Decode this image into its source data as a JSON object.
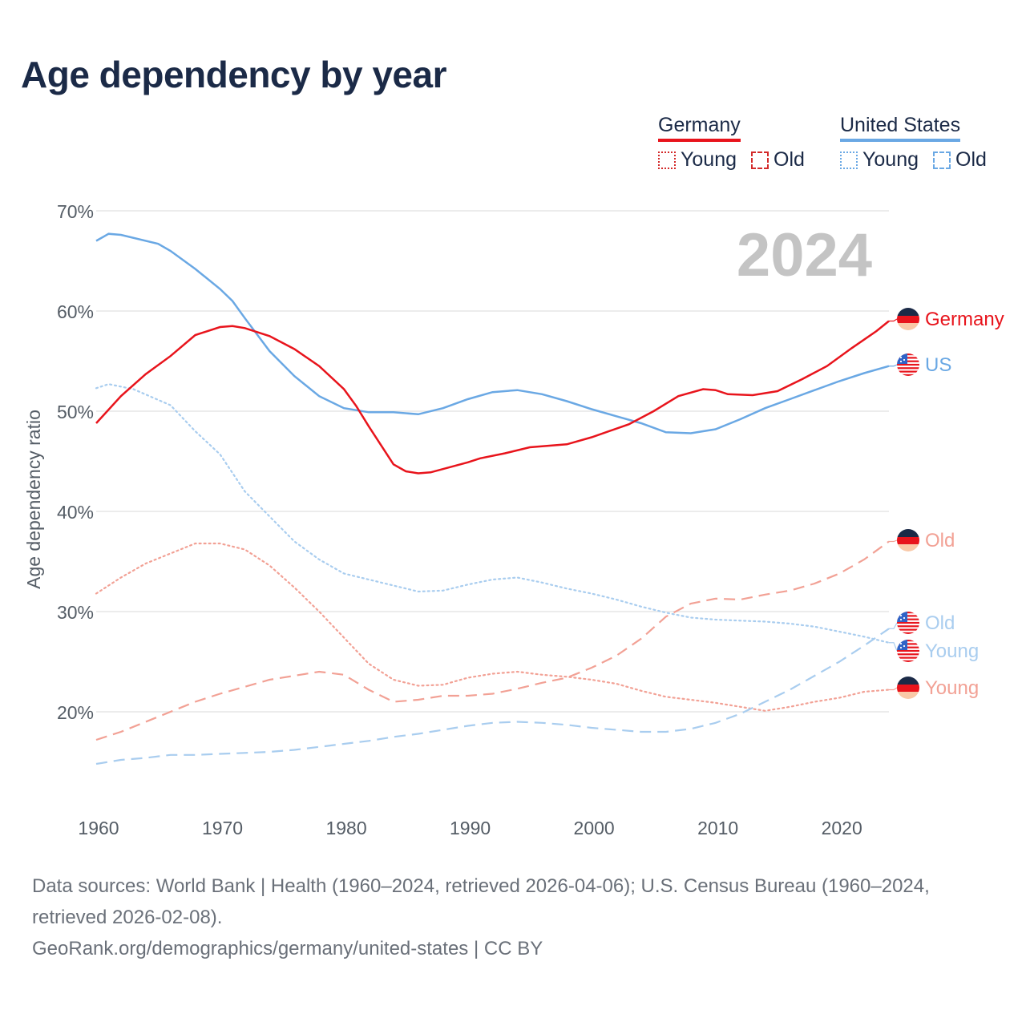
{
  "title": "Age dependency by year",
  "colors": {
    "germany_total": "#e8141c",
    "germany_sub": "#f2a195",
    "us_total": "#6aa8e4",
    "us_sub": "#a9cdef",
    "text_dark": "#1b2a47",
    "grid": "#e6e6e6"
  },
  "legend": {
    "germany": {
      "name": "Germany",
      "young": "Young",
      "old": "Old"
    },
    "us": {
      "name": "United States",
      "young": "Young",
      "old": "Old"
    }
  },
  "chart_data": {
    "type": "line",
    "title": "Age dependency by year",
    "xlabel": "",
    "ylabel": "Age dependency ratio",
    "xlim": [
      1960,
      2024
    ],
    "ylim": [
      0.1,
      0.7
    ],
    "x_ticks": [
      1960,
      1970,
      1980,
      1990,
      2000,
      2010,
      2020
    ],
    "y_ticks": [
      {
        "value": 0.2,
        "label": "20%"
      },
      {
        "value": 0.3,
        "label": "30%"
      },
      {
        "value": 0.4,
        "label": "40%"
      },
      {
        "value": 0.5,
        "label": "50%"
      },
      {
        "value": 0.6,
        "label": "60%"
      },
      {
        "value": 0.7,
        "label": "70%"
      }
    ],
    "current_year": "2024",
    "series": [
      {
        "key": "de_total",
        "name": "Germany",
        "end_label": "Germany",
        "country": "Germany",
        "dash": "solid",
        "color": "#e8141c",
        "points": [
          [
            1960,
            0.488
          ],
          [
            1962,
            0.515
          ],
          [
            1964,
            0.537
          ],
          [
            1966,
            0.555
          ],
          [
            1968,
            0.576
          ],
          [
            1970,
            0.584
          ],
          [
            1971,
            0.585
          ],
          [
            1972,
            0.583
          ],
          [
            1974,
            0.575
          ],
          [
            1976,
            0.562
          ],
          [
            1978,
            0.545
          ],
          [
            1980,
            0.522
          ],
          [
            1981,
            0.505
          ],
          [
            1982,
            0.485
          ],
          [
            1984,
            0.447
          ],
          [
            1985,
            0.44
          ],
          [
            1986,
            0.438
          ],
          [
            1987,
            0.439
          ],
          [
            1990,
            0.449
          ],
          [
            1991,
            0.453
          ],
          [
            1993,
            0.458
          ],
          [
            1995,
            0.464
          ],
          [
            1998,
            0.467
          ],
          [
            2000,
            0.474
          ],
          [
            2003,
            0.487
          ],
          [
            2005,
            0.5
          ],
          [
            2007,
            0.515
          ],
          [
            2009,
            0.522
          ],
          [
            2010,
            0.521
          ],
          [
            2011,
            0.517
          ],
          [
            2013,
            0.516
          ],
          [
            2015,
            0.52
          ],
          [
            2017,
            0.532
          ],
          [
            2019,
            0.545
          ],
          [
            2021,
            0.563
          ],
          [
            2023,
            0.58
          ],
          [
            2024,
            0.59
          ]
        ]
      },
      {
        "key": "us_total",
        "name": "United States",
        "end_label": "US",
        "country": "US",
        "dash": "solid",
        "color": "#6aa8e4",
        "points": [
          [
            1960,
            0.67
          ],
          [
            1961,
            0.677
          ],
          [
            1962,
            0.676
          ],
          [
            1965,
            0.667
          ],
          [
            1966,
            0.66
          ],
          [
            1968,
            0.642
          ],
          [
            1970,
            0.622
          ],
          [
            1971,
            0.61
          ],
          [
            1972,
            0.593
          ],
          [
            1974,
            0.56
          ],
          [
            1976,
            0.535
          ],
          [
            1978,
            0.515
          ],
          [
            1980,
            0.503
          ],
          [
            1982,
            0.499
          ],
          [
            1984,
            0.499
          ],
          [
            1986,
            0.497
          ],
          [
            1988,
            0.503
          ],
          [
            1990,
            0.512
          ],
          [
            1992,
            0.519
          ],
          [
            1994,
            0.521
          ],
          [
            1996,
            0.517
          ],
          [
            1998,
            0.51
          ],
          [
            2000,
            0.502
          ],
          [
            2002,
            0.495
          ],
          [
            2004,
            0.488
          ],
          [
            2006,
            0.479
          ],
          [
            2008,
            0.478
          ],
          [
            2010,
            0.482
          ],
          [
            2012,
            0.492
          ],
          [
            2014,
            0.503
          ],
          [
            2016,
            0.512
          ],
          [
            2018,
            0.521
          ],
          [
            2020,
            0.53
          ],
          [
            2022,
            0.538
          ],
          [
            2024,
            0.545
          ]
        ]
      },
      {
        "key": "de_old",
        "name": "Germany Old",
        "end_label": "Old",
        "country": "Germany",
        "dash": "dashed",
        "color": "#f2a195",
        "points": [
          [
            1960,
            0.172
          ],
          [
            1962,
            0.18
          ],
          [
            1964,
            0.19
          ],
          [
            1966,
            0.2
          ],
          [
            1968,
            0.21
          ],
          [
            1970,
            0.218
          ],
          [
            1972,
            0.225
          ],
          [
            1974,
            0.232
          ],
          [
            1976,
            0.236
          ],
          [
            1978,
            0.24
          ],
          [
            1980,
            0.237
          ],
          [
            1982,
            0.222
          ],
          [
            1984,
            0.21
          ],
          [
            1986,
            0.212
          ],
          [
            1988,
            0.216
          ],
          [
            1990,
            0.216
          ],
          [
            1992,
            0.218
          ],
          [
            1994,
            0.223
          ],
          [
            1996,
            0.229
          ],
          [
            1998,
            0.234
          ],
          [
            2000,
            0.244
          ],
          [
            2002,
            0.256
          ],
          [
            2004,
            0.273
          ],
          [
            2006,
            0.295
          ],
          [
            2008,
            0.308
          ],
          [
            2010,
            0.313
          ],
          [
            2012,
            0.312
          ],
          [
            2014,
            0.317
          ],
          [
            2016,
            0.321
          ],
          [
            2018,
            0.328
          ],
          [
            2020,
            0.338
          ],
          [
            2022,
            0.352
          ],
          [
            2024,
            0.37
          ]
        ]
      },
      {
        "key": "de_young",
        "name": "Germany Young",
        "end_label": "Young",
        "country": "Germany",
        "dash": "dotted",
        "color": "#f2a195",
        "points": [
          [
            1960,
            0.318
          ],
          [
            1962,
            0.334
          ],
          [
            1964,
            0.348
          ],
          [
            1966,
            0.358
          ],
          [
            1968,
            0.368
          ],
          [
            1970,
            0.368
          ],
          [
            1972,
            0.362
          ],
          [
            1974,
            0.346
          ],
          [
            1976,
            0.324
          ],
          [
            1978,
            0.3
          ],
          [
            1980,
            0.274
          ],
          [
            1982,
            0.248
          ],
          [
            1984,
            0.232
          ],
          [
            1986,
            0.226
          ],
          [
            1988,
            0.227
          ],
          [
            1990,
            0.234
          ],
          [
            1992,
            0.238
          ],
          [
            1994,
            0.24
          ],
          [
            1996,
            0.237
          ],
          [
            1998,
            0.235
          ],
          [
            2000,
            0.232
          ],
          [
            2002,
            0.228
          ],
          [
            2004,
            0.221
          ],
          [
            2006,
            0.215
          ],
          [
            2008,
            0.212
          ],
          [
            2010,
            0.209
          ],
          [
            2012,
            0.205
          ],
          [
            2014,
            0.201
          ],
          [
            2016,
            0.205
          ],
          [
            2018,
            0.21
          ],
          [
            2020,
            0.214
          ],
          [
            2022,
            0.22
          ],
          [
            2024,
            0.222
          ]
        ]
      },
      {
        "key": "us_young",
        "name": "United States Young",
        "end_label": "Young",
        "country": "US",
        "dash": "dotted",
        "color": "#a9cdef",
        "points": [
          [
            1960,
            0.523
          ],
          [
            1961,
            0.527
          ],
          [
            1963,
            0.522
          ],
          [
            1966,
            0.506
          ],
          [
            1968,
            0.48
          ],
          [
            1970,
            0.457
          ],
          [
            1972,
            0.42
          ],
          [
            1974,
            0.395
          ],
          [
            1976,
            0.37
          ],
          [
            1978,
            0.352
          ],
          [
            1980,
            0.338
          ],
          [
            1982,
            0.332
          ],
          [
            1984,
            0.326
          ],
          [
            1986,
            0.32
          ],
          [
            1988,
            0.321
          ],
          [
            1990,
            0.327
          ],
          [
            1992,
            0.332
          ],
          [
            1994,
            0.334
          ],
          [
            1996,
            0.329
          ],
          [
            1998,
            0.323
          ],
          [
            2000,
            0.318
          ],
          [
            2002,
            0.312
          ],
          [
            2004,
            0.305
          ],
          [
            2006,
            0.299
          ],
          [
            2008,
            0.294
          ],
          [
            2010,
            0.292
          ],
          [
            2012,
            0.291
          ],
          [
            2014,
            0.29
          ],
          [
            2016,
            0.288
          ],
          [
            2018,
            0.285
          ],
          [
            2020,
            0.28
          ],
          [
            2022,
            0.275
          ],
          [
            2024,
            0.269
          ]
        ]
      },
      {
        "key": "us_old",
        "name": "United States Old",
        "end_label": "Old",
        "country": "US",
        "dash": "dashed",
        "color": "#a9cdef",
        "points": [
          [
            1960,
            0.148
          ],
          [
            1962,
            0.152
          ],
          [
            1964,
            0.154
          ],
          [
            1966,
            0.157
          ],
          [
            1968,
            0.157
          ],
          [
            1970,
            0.158
          ],
          [
            1972,
            0.159
          ],
          [
            1974,
            0.16
          ],
          [
            1976,
            0.162
          ],
          [
            1978,
            0.165
          ],
          [
            1980,
            0.168
          ],
          [
            1982,
            0.171
          ],
          [
            1984,
            0.175
          ],
          [
            1986,
            0.178
          ],
          [
            1988,
            0.182
          ],
          [
            1990,
            0.186
          ],
          [
            1992,
            0.189
          ],
          [
            1994,
            0.19
          ],
          [
            1996,
            0.189
          ],
          [
            1998,
            0.187
          ],
          [
            2000,
            0.184
          ],
          [
            2002,
            0.182
          ],
          [
            2004,
            0.18
          ],
          [
            2006,
            0.18
          ],
          [
            2008,
            0.183
          ],
          [
            2010,
            0.189
          ],
          [
            2012,
            0.198
          ],
          [
            2014,
            0.21
          ],
          [
            2016,
            0.222
          ],
          [
            2018,
            0.236
          ],
          [
            2020,
            0.25
          ],
          [
            2022,
            0.266
          ],
          [
            2024,
            0.283
          ]
        ]
      }
    ]
  },
  "footer": {
    "sources": "Data sources: World Bank | Health (1960–2024, retrieved 2026-04-06); U.S. Census Bureau (1960–2024, retrieved 2026-02-08).",
    "credit": "GeoRank.org/demographics/germany/united-states | CC BY"
  }
}
